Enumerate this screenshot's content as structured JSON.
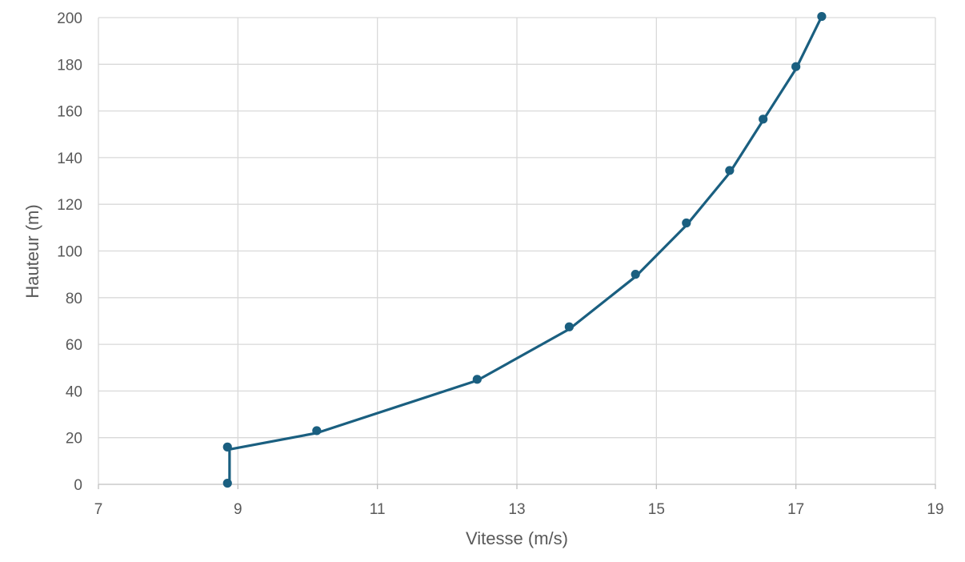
{
  "chart_data": {
    "type": "line",
    "title": "",
    "xlabel": "Vitesse (m/s)",
    "ylabel": "Hauteur (m)",
    "xlim": [
      7,
      19
    ],
    "ylim": [
      0,
      200
    ],
    "x_ticks": [
      7,
      9,
      11,
      13,
      15,
      17,
      19
    ],
    "y_ticks": [
      0,
      20,
      40,
      60,
      80,
      100,
      120,
      140,
      160,
      180,
      200
    ],
    "grid": true,
    "legend": "none",
    "colors": {
      "series": "#1a5f80",
      "grid": "#d9d9d9",
      "text": "#595959"
    },
    "series": [
      {
        "markers": [
          {
            "x": 8.85,
            "y": 0.5
          },
          {
            "x": 8.85,
            "y": 16
          },
          {
            "x": 10.13,
            "y": 23
          },
          {
            "x": 12.43,
            "y": 45
          },
          {
            "x": 13.75,
            "y": 67.5
          },
          {
            "x": 14.7,
            "y": 90
          },
          {
            "x": 15.43,
            "y": 112
          },
          {
            "x": 16.05,
            "y": 134.5
          },
          {
            "x": 16.53,
            "y": 156.5
          },
          {
            "x": 17.0,
            "y": 179
          },
          {
            "x": 17.37,
            "y": 200.5
          }
        ],
        "line": [
          {
            "x": 8.88,
            "y": 0.5
          },
          {
            "x": 8.88,
            "y": 15
          },
          {
            "x": 10.13,
            "y": 22
          },
          {
            "x": 12.43,
            "y": 44.5
          },
          {
            "x": 13.75,
            "y": 66.5
          },
          {
            "x": 14.7,
            "y": 89
          },
          {
            "x": 15.43,
            "y": 111
          },
          {
            "x": 16.05,
            "y": 133.5
          },
          {
            "x": 16.53,
            "y": 156
          },
          {
            "x": 17.0,
            "y": 178
          },
          {
            "x": 17.37,
            "y": 200.5
          }
        ]
      }
    ]
  }
}
